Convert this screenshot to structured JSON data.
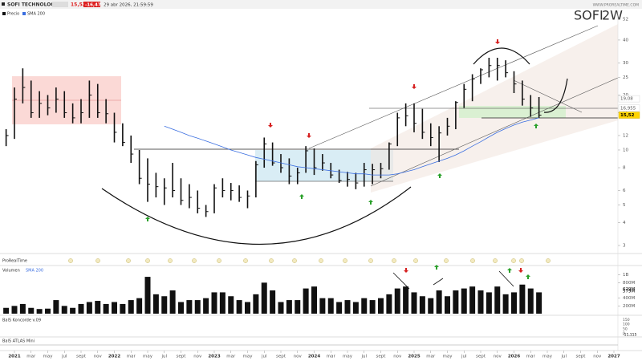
{
  "header": {
    "name": "SOFI TECHNOLOGIES",
    "last": "15,52",
    "change": "-16,47 %",
    "datetime": "29 abr 2026, 21:59:59",
    "site": "WWW.PROREALTIME.COM"
  },
  "chart_data": {
    "type": "ohlc",
    "symbol": "SOFI",
    "period": "2W",
    "legend": [
      "Precio",
      "SMA 200"
    ],
    "log_scale": true,
    "x": [
      "2020-12",
      "2021-01",
      "2021-02",
      "2021-03",
      "2021-04",
      "2021-05",
      "2021-06",
      "2021-07",
      "2021-08",
      "2021-09",
      "2021-10",
      "2021-11",
      "2021-12",
      "2022-01",
      "2022-02",
      "2022-03",
      "2022-04",
      "2022-05",
      "2022-06",
      "2022-07",
      "2022-08",
      "2022-09",
      "2022-10",
      "2022-11",
      "2022-12",
      "2023-01",
      "2023-02",
      "2023-03",
      "2023-04",
      "2023-05",
      "2023-06",
      "2023-07",
      "2023-08",
      "2023-09",
      "2023-10",
      "2023-11",
      "2023-12",
      "2024-01",
      "2024-02",
      "2024-03",
      "2024-04",
      "2024-05",
      "2024-06",
      "2024-07",
      "2024-08",
      "2024-09",
      "2024-10",
      "2024-11",
      "2024-12",
      "2025-01",
      "2025-02",
      "2025-03",
      "2025-04",
      "2025-05",
      "2025-06",
      "2025-07",
      "2025-08",
      "2025-09",
      "2025-10",
      "2025-11",
      "2025-12",
      "2026-01",
      "2026-02",
      "2026-03",
      "2026-04"
    ],
    "high": [
      13,
      22,
      28,
      24,
      21,
      20,
      22,
      21,
      18,
      19,
      24,
      23,
      19,
      16,
      14,
      12,
      10,
      9,
      7.5,
      7,
      8.5,
      7,
      6.5,
      6,
      5,
      6.5,
      7,
      6.6,
      6.4,
      6,
      8.7,
      11.7,
      11,
      9.5,
      9,
      8,
      10.5,
      10.2,
      9.5,
      8.5,
      7.8,
      7.6,
      7.5,
      8.5,
      8.4,
      8.5,
      11,
      16,
      18,
      18,
      16.8,
      14,
      13.5,
      15,
      18.5,
      23,
      26,
      28,
      32,
      32,
      31,
      27,
      24,
      20,
      19.5
    ],
    "low": [
      10.5,
      11.5,
      18,
      15,
      15,
      15.5,
      16,
      15,
      14,
      14,
      15,
      15,
      14,
      11,
      10.5,
      8.5,
      6.5,
      5.2,
      5.5,
      5,
      5.5,
      5,
      4.8,
      4.5,
      4.3,
      4.5,
      5.5,
      5.3,
      5.2,
      4.8,
      5.5,
      8,
      8.2,
      7.5,
      6.5,
      6.5,
      7.5,
      7.3,
      7.7,
      7,
      6.6,
      6.3,
      6.1,
      6.3,
      6.5,
      7,
      7.8,
      10.5,
      13.5,
      12.5,
      11.5,
      10.5,
      8.6,
      12,
      13,
      17,
      18.5,
      23,
      25,
      24,
      25,
      20.5,
      17.5,
      15.2,
      15
    ],
    "close": [
      12,
      19,
      22,
      16,
      18,
      17,
      19,
      16,
      15,
      16,
      20,
      16,
      15.8,
      12.5,
      11,
      9.5,
      7,
      6.5,
      6.3,
      6.2,
      6,
      5.3,
      5.5,
      4.8,
      4.6,
      6.2,
      6,
      6,
      5.5,
      5.6,
      8.3,
      10.8,
      8.5,
      8,
      7.2,
      7.5,
      9.9,
      8,
      8.5,
      7.3,
      6.8,
      6.9,
      6.6,
      7.8,
      7.8,
      7.9,
      10.8,
      15,
      15.4,
      14,
      12.5,
      11.7,
      12.4,
      13.5,
      18.2,
      21.5,
      24.5,
      27.5,
      29,
      29,
      26.5,
      23,
      19,
      17,
      15.52
    ],
    "sma": [
      null,
      null,
      null,
      null,
      null,
      null,
      null,
      null,
      null,
      null,
      null,
      null,
      null,
      null,
      null,
      null,
      null,
      null,
      null,
      13.5,
      13,
      12.5,
      12,
      11.6,
      11.2,
      10.8,
      10.4,
      10,
      9.7,
      9.4,
      9.1,
      8.9,
      8.7,
      8.5,
      8.3,
      8.1,
      8,
      7.9,
      7.8,
      7.7,
      7.6,
      7.5,
      7.4,
      7.4,
      7.3,
      7.3,
      7.3,
      7.4,
      7.6,
      7.8,
      8.1,
      8.4,
      8.7,
      9,
      9.4,
      9.9,
      10.5,
      11.1,
      11.8,
      12.5,
      13.1,
      13.7,
      14.2,
      14.6,
      15
    ],
    "ylim": [
      3,
      52
    ],
    "yticks": [
      3,
      4,
      5,
      6,
      8,
      10,
      12,
      16,
      20,
      25,
      30,
      40,
      52
    ],
    "price_markers": [
      {
        "value": 19.08,
        "label": "19,08"
      },
      {
        "value": 16.955,
        "label": "16,955"
      },
      {
        "value": 15.52,
        "label": "15,52"
      }
    ],
    "xticks": [
      {
        "value": "2021-01",
        "label": "2021"
      },
      {
        "value": "2021-03",
        "label": "mar"
      },
      {
        "value": "2021-05",
        "label": "may"
      },
      {
        "value": "2021-07",
        "label": "jul"
      },
      {
        "value": "2021-09",
        "label": "sept"
      },
      {
        "value": "2021-11",
        "label": "nov"
      },
      {
        "value": "2022-01",
        "label": "2022"
      },
      {
        "value": "2022-03",
        "label": "mar"
      },
      {
        "value": "2022-05",
        "label": "may"
      },
      {
        "value": "2022-07",
        "label": "jul"
      },
      {
        "value": "2022-09",
        "label": "sept"
      },
      {
        "value": "2022-11",
        "label": "nov"
      },
      {
        "value": "2023-01",
        "label": "2023"
      },
      {
        "value": "2023-03",
        "label": "mar"
      },
      {
        "value": "2023-05",
        "label": "may"
      },
      {
        "value": "2023-07",
        "label": "jul"
      },
      {
        "value": "2023-09",
        "label": "sept"
      },
      {
        "value": "2023-11",
        "label": "nov"
      },
      {
        "value": "2024-01",
        "label": "2024"
      },
      {
        "value": "2024-03",
        "label": "mar"
      },
      {
        "value": "2024-05",
        "label": "may"
      },
      {
        "value": "2024-07",
        "label": "jul"
      },
      {
        "value": "2024-09",
        "label": "sept"
      },
      {
        "value": "2024-11",
        "label": "nov"
      },
      {
        "value": "2025-01",
        "label": "2025"
      },
      {
        "value": "2025-03",
        "label": "mar"
      },
      {
        "value": "2025-05",
        "label": "may"
      },
      {
        "value": "2025-07",
        "label": "jul"
      },
      {
        "value": "2025-09",
        "label": "sept"
      },
      {
        "value": "2025-11",
        "label": "nov"
      },
      {
        "value": "2026-01",
        "label": "2026"
      },
      {
        "value": "2026-03",
        "label": "mar"
      },
      {
        "value": "2026-05",
        "label": "may"
      },
      {
        "value": "2026-07",
        "label": "jul"
      },
      {
        "value": "2026-09",
        "label": "sept"
      },
      {
        "value": "2026-11",
        "label": "nov"
      },
      {
        "value": "2027-01",
        "label": "2027"
      }
    ],
    "signals_title": "ProRealTime",
    "volume": {
      "title": "Volumen",
      "sma_label": "SMA 200",
      "color": "#111111",
      "values": [
        150,
        200,
        250,
        150,
        120,
        130,
        350,
        200,
        150,
        250,
        300,
        330,
        250,
        300,
        250,
        350,
        400,
        950,
        500,
        450,
        600,
        300,
        350,
        350,
        400,
        550,
        550,
        450,
        350,
        300,
        500,
        800,
        600,
        300,
        350,
        350,
        650,
        700,
        400,
        400,
        300,
        350,
        300,
        400,
        350,
        400,
        500,
        650,
        700,
        550,
        450,
        400,
        600,
        450,
        600,
        650,
        700,
        600,
        550,
        700,
        500,
        550,
        750,
        650,
        550
      ],
      "ylim": [
        0,
        1200
      ],
      "yticks": [
        {
          "value": 200,
          "label": "200M"
        },
        {
          "value": 400,
          "label": "400M"
        },
        {
          "value": 800,
          "label": "800M"
        },
        {
          "value": 1000,
          "label": "1B"
        }
      ],
      "markers": [
        {
          "value": 629,
          "label": "629M"
        },
        {
          "value": 579,
          "label": "579M"
        }
      ]
    },
    "koncorde": {
      "title": "BalS Koncorde v.09",
      "ylim": [
        -20,
        170
      ],
      "yticks": [
        0,
        50,
        100,
        150
      ],
      "markers": [
        {
          "value": -11.115,
          "label": "-11,115"
        }
      ]
    },
    "atlas": {
      "title": "BalS ATLAS Mini"
    }
  }
}
